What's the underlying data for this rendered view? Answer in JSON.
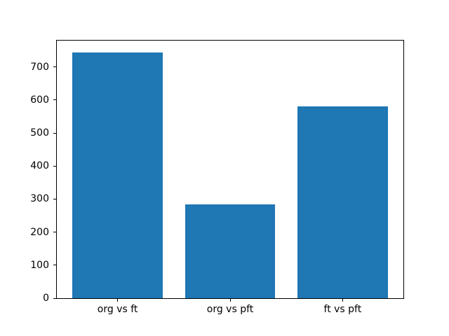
{
  "chart_data": {
    "type": "bar",
    "categories": [
      "org vs ft",
      "org vs pft",
      "ft vs pft"
    ],
    "values": [
      743,
      284,
      581
    ],
    "title": "",
    "xlabel": "",
    "ylabel": "",
    "ylim": [
      0,
      780
    ],
    "yticks": [
      0,
      100,
      200,
      300,
      400,
      500,
      600,
      700
    ],
    "bar_color": "#1f77b4",
    "spine_color": "#000000",
    "text_color": "#000000",
    "background_color": "#ffffff",
    "grid": false,
    "legend": null
  }
}
